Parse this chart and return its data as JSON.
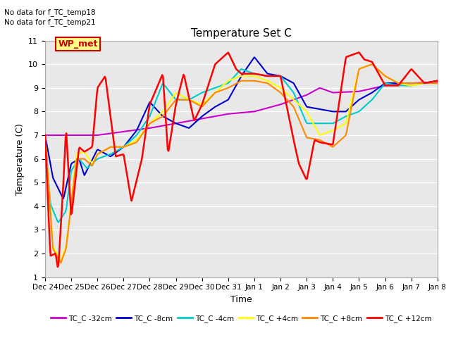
{
  "title": "Temperature Set C",
  "xlabel": "Time",
  "ylabel": "Temperature (C)",
  "ylim": [
    1.0,
    11.0
  ],
  "yticks": [
    1.0,
    2.0,
    3.0,
    4.0,
    5.0,
    6.0,
    7.0,
    8.0,
    9.0,
    10.0,
    11.0
  ],
  "annotations": [
    "No data for f_TC_temp18",
    "No data for f_TC_temp21"
  ],
  "wp_met_label": "WP_met",
  "wp_met_color": "#cc0000",
  "wp_met_bg": "#ffff88",
  "background_color": "#e8e8e8",
  "grid_color": "#ffffff",
  "series_order": [
    "TC_C -32cm",
    "TC_C -8cm",
    "TC_C -4cm",
    "TC_C +4cm",
    "TC_C +8cm",
    "TC_C +12cm"
  ],
  "series": {
    "TC_C -32cm": {
      "color": "#cc00cc",
      "lw": 1.5
    },
    "TC_C -8cm": {
      "color": "#0000cc",
      "lw": 1.5
    },
    "TC_C -4cm": {
      "color": "#00cccc",
      "lw": 1.5
    },
    "TC_C +4cm": {
      "color": "#ffff00",
      "lw": 1.5
    },
    "TC_C +8cm": {
      "color": "#ff8800",
      "lw": 1.5
    },
    "TC_C +12cm": {
      "color": "#ff0000",
      "lw": 1.8
    }
  },
  "x_labels": [
    "Dec 24",
    "Dec 25",
    "Dec 26",
    "Dec 27",
    "Dec 28",
    "Dec 29",
    "Dec 30",
    "Dec 31",
    "Jan 1",
    "Jan 2",
    "Jan 3",
    "Jan 4",
    "Jan 5",
    "Jan 6",
    "Jan 7",
    "Jan 8"
  ],
  "figsize": [
    6.4,
    4.8
  ],
  "dpi": 100
}
